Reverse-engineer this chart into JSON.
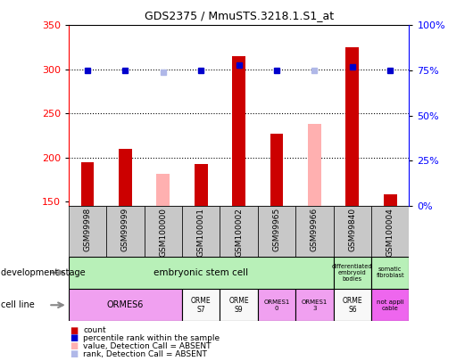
{
  "title": "GDS2375 / MmuSTS.3218.1.S1_at",
  "samples": [
    "GSM99998",
    "GSM99999",
    "GSM100000",
    "GSM100001",
    "GSM100002",
    "GSM99965",
    "GSM99966",
    "GSM99840",
    "GSM100004"
  ],
  "count_values": [
    194,
    210,
    null,
    192,
    315,
    227,
    null,
    325,
    158
  ],
  "count_absent": [
    null,
    null,
    181,
    null,
    null,
    null,
    238,
    null,
    null
  ],
  "rank_pct": [
    75,
    75,
    null,
    75,
    78,
    75,
    null,
    77,
    75
  ],
  "rank_absent_pct": [
    null,
    null,
    74,
    null,
    null,
    null,
    75,
    null,
    null
  ],
  "ylim_left": [
    145,
    350
  ],
  "ylim_right": [
    0,
    100
  ],
  "yticks_left": [
    150,
    200,
    250,
    300,
    350
  ],
  "yticks_right": [
    0,
    25,
    50,
    75,
    100
  ],
  "bar_width": 0.35,
  "count_color": "#cc0000",
  "count_absent_color": "#ffb0b0",
  "rank_color": "#0000cc",
  "rank_absent_color": "#b0b8e8",
  "grid_color": "#000000",
  "bg_color": "#ffffff",
  "sample_box_color": "#c8c8c8",
  "dev_embryonic_color": "#b8f0b8",
  "dev_other_color": "#b8f0b8",
  "cell_ormes6_color": "#f0a0f0",
  "cell_white_color": "#f8f8f8",
  "cell_pink_color": "#f0a0f0",
  "cell_notapp_color": "#ee66ee"
}
